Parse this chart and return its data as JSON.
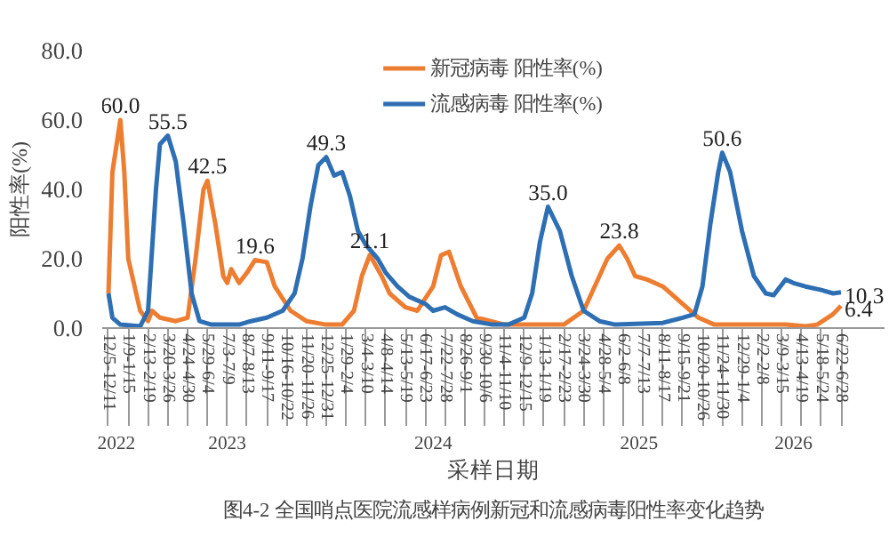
{
  "chart_data": {
    "type": "line",
    "title": "图4-2 全国哨点医院流感样病例新冠和流感病毒阳性率变化趋势",
    "xlabel": "采样日期",
    "ylabel": "阳性率(%)",
    "ylim": [
      0,
      80
    ],
    "yticks": [
      {
        "value": 0,
        "label": "0.0"
      },
      {
        "value": 20,
        "label": "20.0"
      },
      {
        "value": 40,
        "label": "40.0"
      },
      {
        "value": 60,
        "label": "60.0"
      },
      {
        "value": 80,
        "label": "80.0"
      }
    ],
    "xlim": [
      "2022-11-24",
      "2026-09-07"
    ],
    "x2lim": [
      "2022-11-24",
      "2026-09-07"
    ],
    "x2ticks": [
      {
        "value": "2022-12-19",
        "label": "2022"
      },
      {
        "value": "2023-07-03",
        "label": "2023"
      },
      {
        "value": "2024-07-01",
        "label": "2024"
      },
      {
        "value": "2025-06-30",
        "label": "2025"
      },
      {
        "value": "2026-03-30",
        "label": "2026"
      }
    ],
    "xticks": [
      {
        "value": "2022-12-05",
        "label": "12/5-12/11"
      },
      {
        "value": "2023-01-09",
        "label": "1/9-1/15"
      },
      {
        "value": "2023-02-13",
        "label": "2/13-2/19"
      },
      {
        "value": "2023-03-20",
        "label": "3/20-3/26"
      },
      {
        "value": "2023-04-24",
        "label": "4/24-4/30"
      },
      {
        "value": "2023-05-29",
        "label": "5/29-6/4"
      },
      {
        "value": "2023-07-03",
        "label": "7/3-7/9"
      },
      {
        "value": "2023-08-07",
        "label": "8/7-8/13"
      },
      {
        "value": "2023-09-11",
        "label": "9/11-9/17"
      },
      {
        "value": "2023-10-16",
        "label": "10/16-10/22"
      },
      {
        "value": "2023-11-20",
        "label": "11/20-11/26"
      },
      {
        "value": "2023-12-25",
        "label": "12/25-12/31"
      },
      {
        "value": "2024-01-29",
        "label": "1/29-2/4"
      },
      {
        "value": "2024-03-04",
        "label": "3/4-3/10"
      },
      {
        "value": "2024-04-08",
        "label": "4/8-4/14"
      },
      {
        "value": "2024-05-13",
        "label": "5/13-5/19"
      },
      {
        "value": "2024-06-17",
        "label": "6/17-6/23"
      },
      {
        "value": "2024-07-22",
        "label": "7/22-7/28"
      },
      {
        "value": "2024-08-26",
        "label": "8/26-9/1"
      },
      {
        "value": "2024-09-30",
        "label": "9/30-10/6"
      },
      {
        "value": "2024-11-04",
        "label": "11/4-11/10"
      },
      {
        "value": "2024-12-09",
        "label": "12/9-12/15"
      },
      {
        "value": "2025-01-13",
        "label": "1/13-1/19"
      },
      {
        "value": "2025-02-17",
        "label": "2/17-2/23"
      },
      {
        "value": "2025-03-24",
        "label": "3/24-3/30"
      },
      {
        "value": "2025-04-28",
        "label": "4/28-5/4"
      },
      {
        "value": "2025-06-02",
        "label": "6/2-6/8"
      },
      {
        "value": "2025-07-07",
        "label": "7/7-7/13"
      },
      {
        "value": "2025-08-11",
        "label": "8/11-8/17"
      },
      {
        "value": "2025-09-15",
        "label": "9/15-9/21"
      },
      {
        "value": "2025-10-20",
        "label": "10/20-10/26"
      },
      {
        "value": "2025-11-24",
        "label": "11/24-11/30"
      },
      {
        "value": "2025-12-29",
        "label": "12/29-1/4"
      },
      {
        "value": "2026-02-02",
        "label": "2/2-2/8"
      },
      {
        "value": "2026-03-09",
        "label": "3/9-3/15"
      },
      {
        "value": "2026-04-13",
        "label": "4/13-4/19"
      },
      {
        "value": "2026-05-18",
        "label": "5/18-5/24"
      },
      {
        "value": "2026-06-22",
        "label": "6/22-6/28"
      }
    ],
    "legend": "top",
    "grid": false,
    "marker": "none",
    "line_style": "solid",
    "series": [
      {
        "name": "新冠病毒 阳性率(%)",
        "color": "#ed7d31",
        "x": [
          "2022-12-05",
          "2022-12-12",
          "2022-12-26",
          "2023-01-02",
          "2023-01-09",
          "2023-01-30",
          "2023-02-13",
          "2023-02-20",
          "2023-03-06",
          "2023-04-03",
          "2023-04-24",
          "2023-05-08",
          "2023-05-22",
          "2023-05-29",
          "2023-06-12",
          "2023-06-26",
          "2023-07-03",
          "2023-07-10",
          "2023-07-24",
          "2023-08-07",
          "2023-08-21",
          "2023-09-11",
          "2023-09-25",
          "2023-10-23",
          "2023-11-20",
          "2023-12-25",
          "2024-01-22",
          "2024-02-12",
          "2024-02-26",
          "2024-03-11",
          "2024-04-01",
          "2024-04-15",
          "2024-05-13",
          "2024-06-03",
          "2024-07-01",
          "2024-07-15",
          "2024-07-29",
          "2024-08-19",
          "2024-09-16",
          "2024-11-04",
          "2025-02-17",
          "2025-03-24",
          "2025-04-21",
          "2025-05-05",
          "2025-05-26",
          "2025-06-09",
          "2025-06-23",
          "2025-07-14",
          "2025-08-11",
          "2025-09-08",
          "2025-10-13",
          "2025-11-10",
          "2026-03-16",
          "2026-04-20",
          "2026-05-11",
          "2026-06-08",
          "2026-06-22"
        ],
        "values": [
          10,
          45,
          60.0,
          45,
          20,
          5,
          2,
          5,
          3,
          2,
          3,
          20,
          40,
          42.5,
          30,
          15,
          13,
          17,
          13,
          16,
          19.6,
          19,
          12,
          5,
          2,
          1,
          1,
          5,
          15,
          21.1,
          15,
          10,
          6,
          5,
          12,
          21,
          22,
          12,
          3,
          1,
          1,
          5,
          15,
          20,
          23.8,
          20,
          15,
          14,
          12,
          8,
          3,
          1,
          1,
          0.5,
          1,
          4,
          6.4
        ],
        "value_labels": [
          null,
          null,
          "60.0",
          null,
          null,
          null,
          null,
          null,
          null,
          null,
          null,
          null,
          null,
          "42.5",
          null,
          null,
          null,
          null,
          null,
          null,
          "19.6",
          null,
          null,
          null,
          null,
          null,
          null,
          null,
          null,
          "21.1",
          null,
          null,
          null,
          null,
          null,
          null,
          null,
          null,
          null,
          null,
          null,
          null,
          null,
          null,
          "23.8",
          null,
          null,
          null,
          null,
          null,
          null,
          null,
          null,
          null,
          null,
          null,
          "6.4"
        ]
      },
      {
        "name": "流感病毒 阳性率(%)",
        "color": "#2e6fb4",
        "x": [
          "2022-12-05",
          "2022-12-12",
          "2022-12-26",
          "2023-01-30",
          "2023-02-13",
          "2023-02-27",
          "2023-03-06",
          "2023-03-20",
          "2023-04-03",
          "2023-04-17",
          "2023-05-01",
          "2023-05-15",
          "2023-06-05",
          "2023-07-24",
          "2023-08-14",
          "2023-09-11",
          "2023-10-09",
          "2023-10-30",
          "2023-11-13",
          "2023-11-27",
          "2023-12-11",
          "2023-12-25",
          "2024-01-08",
          "2024-01-22",
          "2024-02-05",
          "2024-02-19",
          "2024-03-04",
          "2024-03-25",
          "2024-04-08",
          "2024-04-29",
          "2024-05-20",
          "2024-06-17",
          "2024-07-01",
          "2024-07-22",
          "2024-08-12",
          "2024-09-09",
          "2024-10-14",
          "2024-11-11",
          "2024-12-09",
          "2024-12-23",
          "2025-01-06",
          "2025-01-20",
          "2025-02-10",
          "2025-03-03",
          "2025-03-24",
          "2025-04-21",
          "2025-05-19",
          "2025-08-11",
          "2025-09-15",
          "2025-10-06",
          "2025-10-20",
          "2025-11-03",
          "2025-11-17",
          "2025-11-24",
          "2025-12-08",
          "2025-12-29",
          "2026-01-19",
          "2026-02-09",
          "2026-02-23",
          "2026-03-16",
          "2026-03-30",
          "2026-04-20",
          "2026-05-18",
          "2026-06-08",
          "2026-06-22"
        ],
        "values": [
          10,
          3,
          1,
          0.5,
          5,
          40,
          53,
          55.5,
          48,
          30,
          10,
          2,
          1,
          1,
          2,
          3,
          5,
          10,
          20,
          35,
          47,
          49.3,
          44,
          45,
          38,
          28,
          24,
          20,
          16,
          12,
          9,
          7,
          5,
          6,
          4,
          2,
          1,
          1,
          3,
          10,
          25,
          35.0,
          28,
          15,
          5,
          2,
          1,
          1.5,
          3,
          4,
          12,
          30,
          45,
          50.6,
          45,
          28,
          15,
          10,
          9.5,
          14,
          13,
          12,
          11,
          10,
          10.3
        ],
        "value_labels": [
          null,
          null,
          null,
          null,
          null,
          null,
          null,
          "55.5",
          null,
          null,
          null,
          null,
          null,
          null,
          null,
          null,
          null,
          null,
          null,
          null,
          null,
          "49.3",
          null,
          null,
          null,
          null,
          null,
          null,
          null,
          null,
          null,
          null,
          null,
          null,
          null,
          null,
          null,
          null,
          null,
          null,
          null,
          "35.0",
          null,
          null,
          null,
          null,
          null,
          null,
          null,
          null,
          null,
          null,
          null,
          "50.6",
          null,
          null,
          null,
          null,
          null,
          null,
          null,
          null,
          null,
          null,
          "10.3"
        ]
      }
    ]
  }
}
